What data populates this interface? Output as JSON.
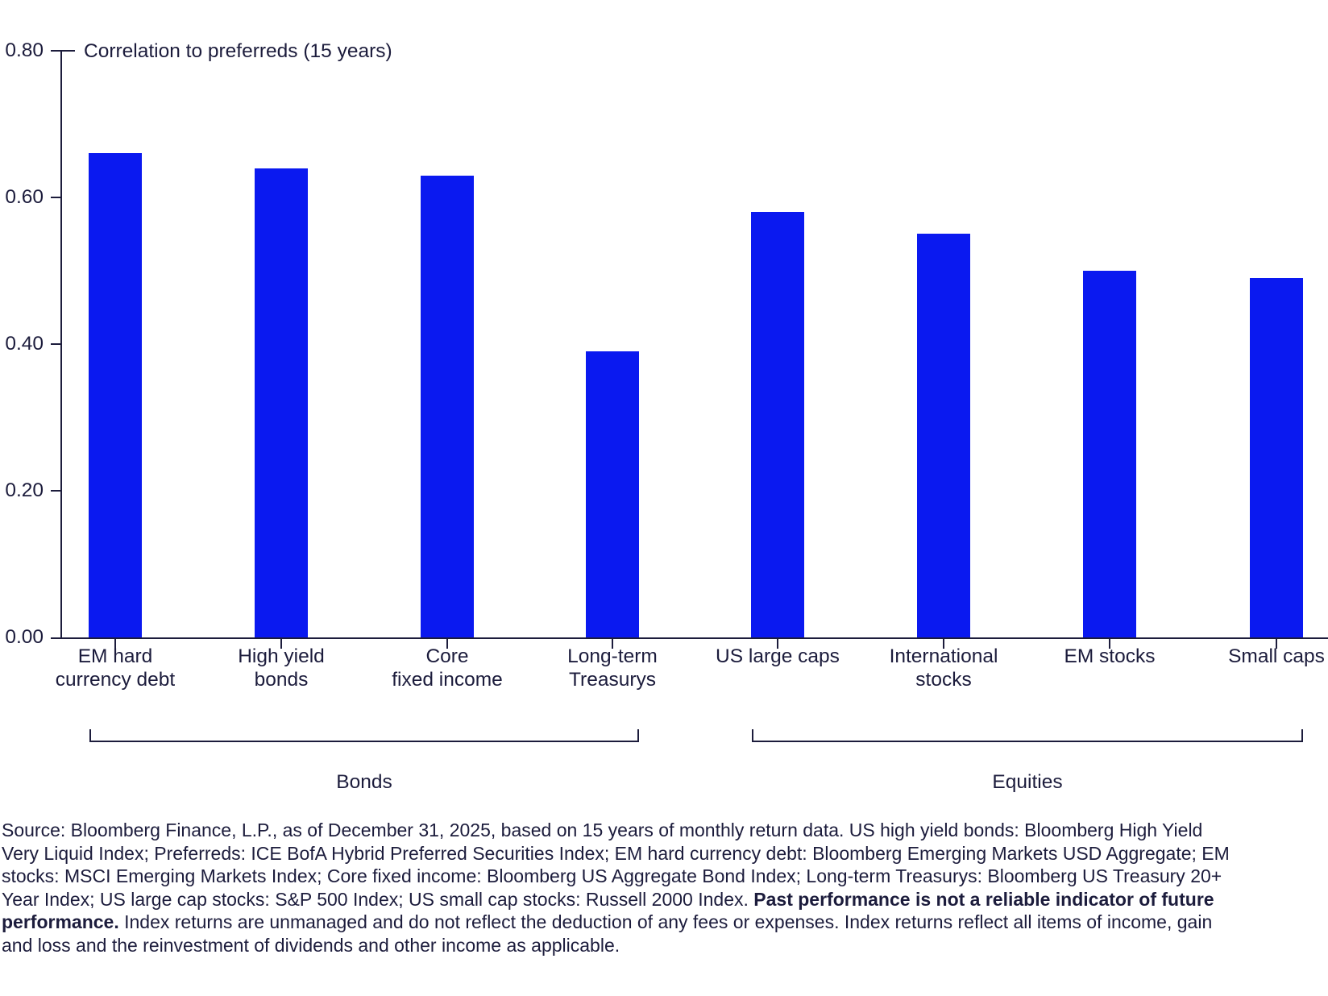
{
  "chart_data": {
    "type": "bar",
    "title": "Correlation to preferreds (15 years)",
    "categories": [
      "EM hard currency debt",
      "High yield bonds",
      "Core fixed income",
      "Long-term Treasurys",
      "US large caps",
      "International stocks",
      "EM stocks",
      "Small caps"
    ],
    "category_label_lines": [
      [
        "EM hard",
        "currency debt"
      ],
      [
        "High yield",
        "bonds"
      ],
      [
        "Core",
        "fixed income"
      ],
      [
        "Long-term",
        "Treasurys"
      ],
      [
        "US large caps"
      ],
      [
        "International",
        "stocks"
      ],
      [
        "EM stocks"
      ],
      [
        "Small caps"
      ]
    ],
    "values": [
      0.66,
      0.64,
      0.63,
      0.39,
      0.58,
      0.55,
      0.5,
      0.49
    ],
    "groups": [
      {
        "label": "Bonds",
        "start": 0,
        "end": 3
      },
      {
        "label": "Equities",
        "start": 4,
        "end": 7
      }
    ],
    "xlabel": "",
    "ylabel": "",
    "ylim": [
      0,
      0.8
    ],
    "y_tick_interval": 0.2,
    "y_tick_labels": [
      "0.00",
      "0.20",
      "0.40",
      "0.60",
      "0.80"
    ],
    "grid": false,
    "legend_position": "none",
    "bar_color": "#0A19F0",
    "axis_color": "#1C1C3C"
  },
  "footnote": {
    "segments": [
      {
        "bold": false,
        "text": "Source: Bloomberg Finance, L.P., as of December 31, 2025, based on 15 years of monthly return data. US high yield bonds: Bloomberg High Yield Very Liquid Index; Preferreds: ICE BofA Hybrid Preferred Securities Index; EM hard currency debt: Bloomberg Emerging Markets USD Aggregate; EM stocks: MSCI Emerging Markets Index; Core fixed income: Bloomberg US Aggregate Bond Index; Long-term Treasurys: Bloomberg US Treasury 20+ Year Index; US large cap stocks: S&P 500 Index; US small cap stocks: Russell 2000 Index. "
      },
      {
        "bold": true,
        "text": "Past performance is not a reliable indicator of future performance."
      },
      {
        "bold": false,
        "text": " Index returns are unmanaged and do not reflect the deduction of any fees or expenses. Index returns reflect all items of income, gain and loss and the reinvestment of dividends and other income as applicable."
      }
    ]
  }
}
